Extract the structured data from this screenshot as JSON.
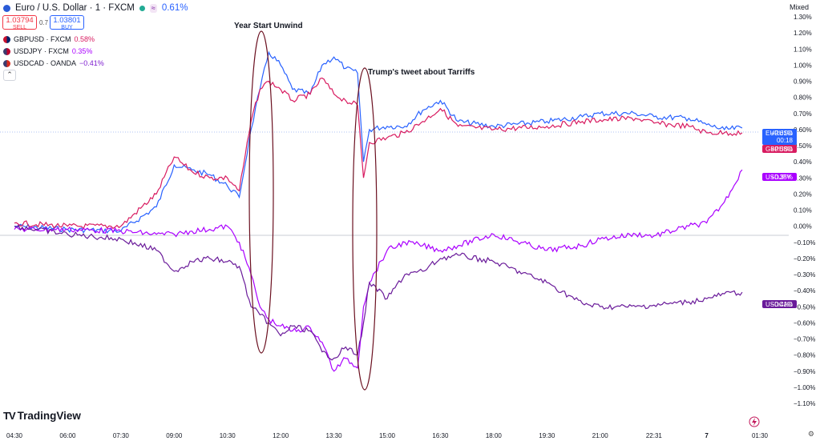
{
  "header": {
    "title": "Euro / U.S. Dollar · 1 · FXCM",
    "change": "0.61%",
    "market_icon": "≈",
    "sell_price": "1.03794",
    "sell_label": "SELL",
    "spread": "0.7",
    "buy_price": "1.03801",
    "buy_label": "BUY",
    "scale_mode": "Mixed",
    "collapse_icon": "chevron-up-icon"
  },
  "legend": [
    {
      "name": "GBPUSD · FXCM",
      "value": "0.58%",
      "color": "#d81b60"
    },
    {
      "name": "USDJPY · FXCM",
      "value": "0.35%",
      "color": "#aa00ff"
    },
    {
      "name": "USDCAD · OANDA",
      "value": "−0.41%",
      "color": "#7e1fcf"
    }
  ],
  "brand": "TradingView",
  "annotations": [
    {
      "text": "Year Start Unwind"
    },
    {
      "text": "Trump's tweet about Tarriffs"
    }
  ],
  "price_tags": [
    {
      "label": "EURUSD",
      "value": "+0.61%",
      "sub": "00:18",
      "color": "#2962ff"
    },
    {
      "label": "GBPUSD",
      "value": "+0.58%",
      "color": "#d81b60"
    },
    {
      "label": "USDJPY",
      "value": "+0.35%",
      "color": "#aa00ff"
    },
    {
      "label": "USDCAD",
      "value": "−0.41%",
      "color": "#6a1b9a"
    }
  ],
  "chart_data": {
    "type": "line",
    "x_labels": [
      "04:30",
      "06:00",
      "07:30",
      "09:00",
      "10:30",
      "12:00",
      "13:30",
      "15:00",
      "16:30",
      "18:00",
      "19:30",
      "21:00",
      "22:31",
      "7",
      "01:30"
    ],
    "y_ticks": [
      "1.30%",
      "1.20%",
      "1.10%",
      "1.00%",
      "0.90%",
      "0.80%",
      "0.70%",
      "0.60%",
      "0.50%",
      "0.40%",
      "0.30%",
      "0.20%",
      "0.10%",
      "0.00%",
      "−0.10%",
      "−0.20%",
      "−0.30%",
      "−0.40%",
      "−0.50%",
      "−0.60%",
      "−0.70%",
      "−0.80%",
      "−0.90%",
      "−1.00%",
      "−1.10%"
    ],
    "ylim": [
      -1.1,
      1.3
    ],
    "series": [
      {
        "name": "EURUSD",
        "color": "#2962ff",
        "points": [
          [
            "04:30",
            0.0
          ],
          [
            "06:00",
            -0.02
          ],
          [
            "07:30",
            -0.03
          ],
          [
            "08:30",
            0.12
          ],
          [
            "09:00",
            0.38
          ],
          [
            "09:30",
            0.35
          ],
          [
            "10:00",
            0.32
          ],
          [
            "10:30",
            0.25
          ],
          [
            "10:50",
            0.18
          ],
          [
            "11:10",
            0.6
          ],
          [
            "11:25",
            0.85
          ],
          [
            "11:40",
            1.08
          ],
          [
            "12:00",
            1.0
          ],
          [
            "12:20",
            0.85
          ],
          [
            "12:50",
            0.82
          ],
          [
            "13:10",
            1.0
          ],
          [
            "13:30",
            1.05
          ],
          [
            "13:50",
            0.98
          ],
          [
            "14:10",
            0.95
          ],
          [
            "14:20",
            0.4
          ],
          [
            "14:30",
            0.6
          ],
          [
            "15:00",
            0.62
          ],
          [
            "15:30",
            0.62
          ],
          [
            "16:00",
            0.72
          ],
          [
            "16:30",
            0.78
          ],
          [
            "17:00",
            0.65
          ],
          [
            "18:00",
            0.62
          ],
          [
            "19:30",
            0.65
          ],
          [
            "20:30",
            0.68
          ],
          [
            "21:00",
            0.7
          ],
          [
            "22:00",
            0.7
          ],
          [
            "22:31",
            0.68
          ],
          [
            "23:30",
            0.67
          ],
          [
            "7",
            0.63
          ],
          [
            "00:30",
            0.6
          ],
          [
            "01:00",
            0.61
          ]
        ]
      },
      {
        "name": "GBPUSD",
        "color": "#d81b60",
        "points": [
          [
            "04:30",
            0.02
          ],
          [
            "06:00",
            0.0
          ],
          [
            "07:30",
            0.0
          ],
          [
            "08:30",
            0.2
          ],
          [
            "09:00",
            0.43
          ],
          [
            "09:30",
            0.34
          ],
          [
            "10:00",
            0.3
          ],
          [
            "10:30",
            0.3
          ],
          [
            "10:50",
            0.22
          ],
          [
            "11:10",
            0.65
          ],
          [
            "11:25",
            0.85
          ],
          [
            "11:40",
            0.9
          ],
          [
            "12:00",
            0.85
          ],
          [
            "12:20",
            0.78
          ],
          [
            "12:50",
            0.82
          ],
          [
            "13:10",
            0.92
          ],
          [
            "13:30",
            0.82
          ],
          [
            "13:50",
            0.78
          ],
          [
            "14:10",
            0.75
          ],
          [
            "14:20",
            0.3
          ],
          [
            "14:30",
            0.52
          ],
          [
            "15:00",
            0.55
          ],
          [
            "15:30",
            0.58
          ],
          [
            "16:00",
            0.65
          ],
          [
            "16:30",
            0.73
          ],
          [
            "17:00",
            0.62
          ],
          [
            "18:00",
            0.6
          ],
          [
            "19:30",
            0.62
          ],
          [
            "20:30",
            0.65
          ],
          [
            "21:00",
            0.66
          ],
          [
            "22:00",
            0.67
          ],
          [
            "22:31",
            0.64
          ],
          [
            "23:30",
            0.62
          ],
          [
            "7",
            0.58
          ],
          [
            "00:30",
            0.58
          ],
          [
            "01:00",
            0.58
          ]
        ]
      },
      {
        "name": "USDJPY",
        "color": "#aa00ff",
        "points": [
          [
            "04:30",
            -0.02
          ],
          [
            "06:00",
            -0.02
          ],
          [
            "07:30",
            -0.03
          ],
          [
            "08:30",
            -0.05
          ],
          [
            "09:00",
            -0.05
          ],
          [
            "09:30",
            -0.03
          ],
          [
            "10:00",
            -0.02
          ],
          [
            "10:30",
            0.0
          ],
          [
            "10:50",
            -0.1
          ],
          [
            "11:10",
            -0.3
          ],
          [
            "11:25",
            -0.5
          ],
          [
            "11:40",
            -0.58
          ],
          [
            "12:00",
            -0.62
          ],
          [
            "12:20",
            -0.65
          ],
          [
            "12:50",
            -0.63
          ],
          [
            "13:10",
            -0.72
          ],
          [
            "13:30",
            -0.9
          ],
          [
            "13:50",
            -0.82
          ],
          [
            "14:10",
            -0.88
          ],
          [
            "14:20",
            -0.5
          ],
          [
            "14:30",
            -0.35
          ],
          [
            "15:00",
            -0.15
          ],
          [
            "15:30",
            -0.1
          ],
          [
            "16:00",
            -0.12
          ],
          [
            "16:30",
            -0.15
          ],
          [
            "17:00",
            -0.12
          ],
          [
            "18:00",
            -0.05
          ],
          [
            "19:30",
            -0.15
          ],
          [
            "20:30",
            -0.12
          ],
          [
            "21:00",
            -0.08
          ],
          [
            "22:00",
            -0.05
          ],
          [
            "22:31",
            -0.06
          ],
          [
            "23:30",
            0.0
          ],
          [
            "7",
            0.02
          ],
          [
            "00:30",
            0.15
          ],
          [
            "01:00",
            0.35
          ]
        ]
      },
      {
        "name": "USDCAD",
        "color": "#6a1b9a",
        "points": [
          [
            "04:30",
            0.0
          ],
          [
            "06:00",
            -0.05
          ],
          [
            "07:30",
            -0.08
          ],
          [
            "08:30",
            -0.15
          ],
          [
            "09:00",
            -0.28
          ],
          [
            "09:30",
            -0.22
          ],
          [
            "10:00",
            -0.2
          ],
          [
            "10:30",
            -0.22
          ],
          [
            "10:50",
            -0.25
          ],
          [
            "11:10",
            -0.5
          ],
          [
            "11:25",
            -0.55
          ],
          [
            "11:40",
            -0.6
          ],
          [
            "12:00",
            -0.68
          ],
          [
            "12:20",
            -0.62
          ],
          [
            "12:50",
            -0.65
          ],
          [
            "13:10",
            -0.78
          ],
          [
            "13:30",
            -0.82
          ],
          [
            "13:50",
            -0.75
          ],
          [
            "14:10",
            -0.8
          ],
          [
            "14:20",
            -0.6
          ],
          [
            "14:30",
            -0.35
          ],
          [
            "15:00",
            -0.45
          ],
          [
            "15:30",
            -0.3
          ],
          [
            "16:00",
            -0.28
          ],
          [
            "16:30",
            -0.2
          ],
          [
            "17:00",
            -0.18
          ],
          [
            "18:00",
            -0.22
          ],
          [
            "19:30",
            -0.35
          ],
          [
            "20:30",
            -0.48
          ],
          [
            "21:00",
            -0.5
          ],
          [
            "22:00",
            -0.5
          ],
          [
            "22:31",
            -0.49
          ],
          [
            "23:30",
            -0.47
          ],
          [
            "7",
            -0.45
          ],
          [
            "00:30",
            -0.42
          ],
          [
            "01:00",
            -0.41
          ]
        ]
      }
    ]
  }
}
